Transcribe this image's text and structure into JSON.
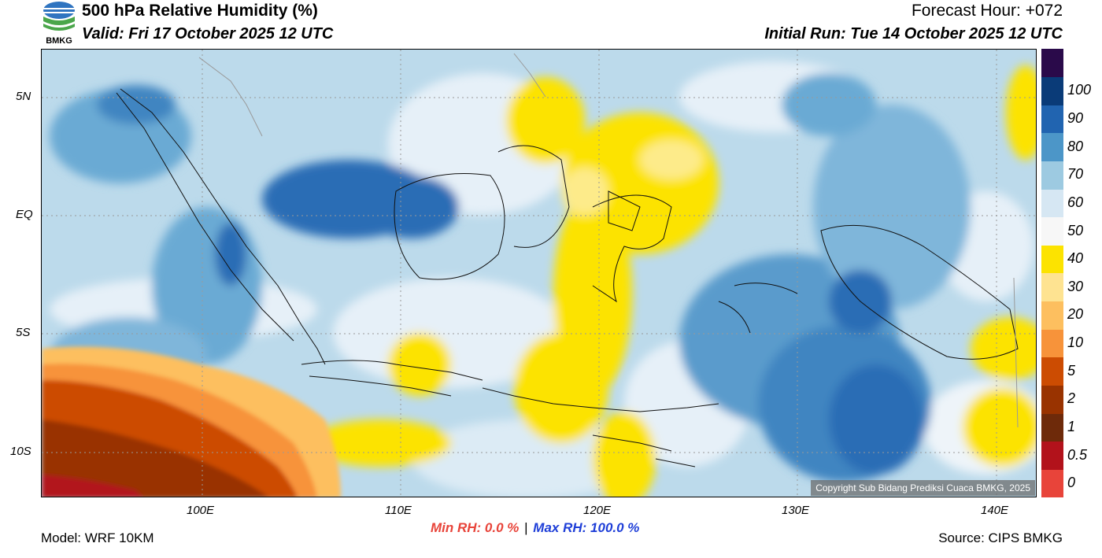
{
  "header": {
    "title": "500 hPa Relative Humidity (%)",
    "valid": "Valid: Fri 17 October 2025 12 UTC",
    "forecast_hour": "Forecast Hour: +072",
    "initial_run": "Initial Run: Tue 14 October 2025 12 UTC",
    "logo_text": "BMKG"
  },
  "map": {
    "copyright": "Copyright Sub Bidang Prediksi Cuaca BMKG, 2025",
    "lat_labels": [
      "5N",
      "EQ",
      "5S",
      "10S"
    ],
    "lon_labels": [
      "100E",
      "110E",
      "120E",
      "130E",
      "140E"
    ]
  },
  "colorbar": {
    "levels": [
      "0",
      "0.5",
      "1",
      "2",
      "5",
      "10",
      "20",
      "30",
      "40",
      "50",
      "60",
      "70",
      "80",
      "90",
      "100"
    ],
    "colors": [
      "#e8443a",
      "#b2121b",
      "#6e2a0a",
      "#993300",
      "#cc4c02",
      "#f7933a",
      "#fdbf5f",
      "#fee391",
      "#fce300",
      "#f7f7f7",
      "#d6e7f3",
      "#9dcae1",
      "#4c96c8",
      "#2164b0",
      "#0a3b78",
      "#2a0a4a"
    ]
  },
  "stats": {
    "min": "Min RH:   0.0 %",
    "sep": "|",
    "max": "Max RH: 100.0 %"
  },
  "footer": {
    "model": "Model: WRF 10KM",
    "source": "Source: CIPS BMKG"
  }
}
